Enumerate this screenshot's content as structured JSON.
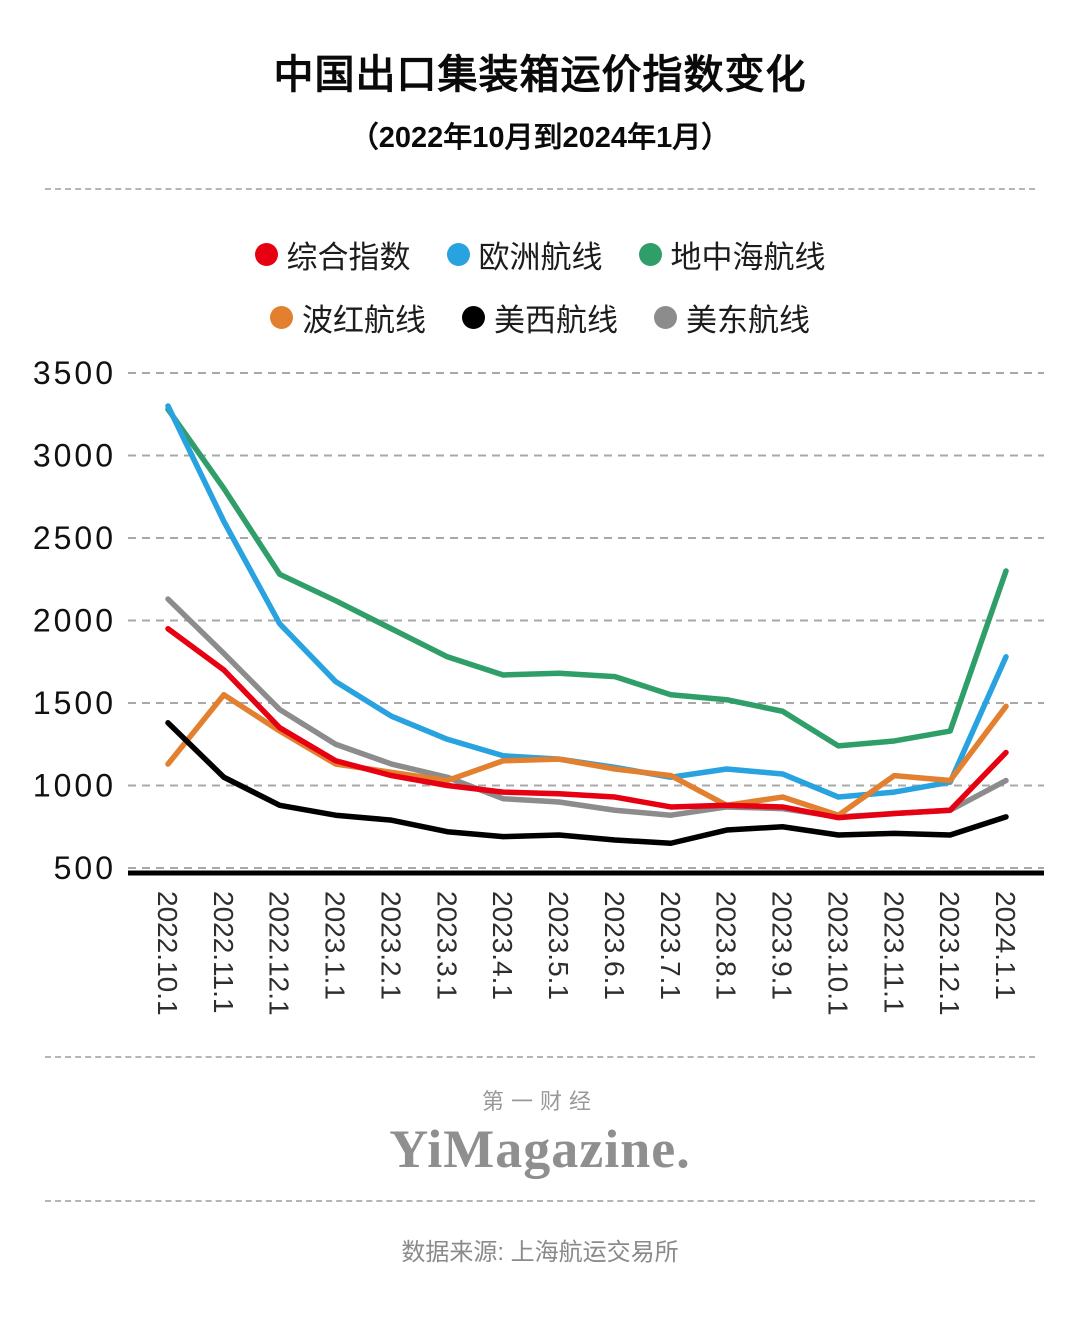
{
  "chart_data": {
    "type": "line",
    "title": "中国出口集装箱运价指数变化",
    "subtitle": "（2022年10月到2024年1月）",
    "categories": [
      "2022.10.1",
      "2022.11.1",
      "2022.12.1",
      "2023.1.1",
      "2023.2.1",
      "2023.3.1",
      "2023.4.1",
      "2023.5.1",
      "2023.6.1",
      "2023.7.1",
      "2023.8.1",
      "2023.9.1",
      "2023.10.1",
      "2023.11.1",
      "2023.12.1",
      "2024.1.1"
    ],
    "ylim": [
      500,
      3500
    ],
    "ytick_step": 500,
    "yticks": [
      500,
      1000,
      1500,
      2000,
      2500,
      3000,
      3500
    ],
    "grid": "dashed-horizontal",
    "legend_position": "top",
    "series": [
      {
        "name": "综合指数",
        "color": "#e60012",
        "values": [
          1950,
          1700,
          1350,
          1150,
          1060,
          1000,
          960,
          950,
          930,
          870,
          880,
          870,
          805,
          830,
          850,
          1200
        ]
      },
      {
        "name": "欧洲航线",
        "color": "#29a2e0",
        "values": [
          3300,
          2600,
          1980,
          1630,
          1420,
          1280,
          1180,
          1160,
          1110,
          1050,
          1100,
          1070,
          930,
          960,
          1020,
          1780
        ]
      },
      {
        "name": "地中海航线",
        "color": "#2f9e68",
        "values": [
          3280,
          2800,
          2280,
          2120,
          1950,
          1780,
          1670,
          1680,
          1660,
          1550,
          1520,
          1450,
          1240,
          1270,
          1330,
          2300
        ]
      },
      {
        "name": "波红航线",
        "color": "#e2802f",
        "values": [
          1130,
          1550,
          1330,
          1130,
          1080,
          1030,
          1150,
          1160,
          1100,
          1060,
          880,
          930,
          820,
          1060,
          1030,
          1480
        ]
      },
      {
        "name": "美西航线",
        "color": "#000000",
        "values": [
          1380,
          1050,
          880,
          820,
          790,
          720,
          690,
          700,
          670,
          650,
          730,
          750,
          700,
          710,
          700,
          810
        ]
      },
      {
        "name": "美东航线",
        "color": "#8c8c8c",
        "values": [
          2130,
          1800,
          1460,
          1250,
          1130,
          1050,
          920,
          900,
          850,
          820,
          870,
          860,
          810,
          830,
          850,
          1030
        ]
      }
    ],
    "draw_order": [
      5,
      2,
      1,
      3,
      0,
      4
    ]
  },
  "footer": {
    "brand_cn": "第一财经",
    "brand_en": "YiMagazine.",
    "source": "数据来源: 上海航运交易所"
  }
}
